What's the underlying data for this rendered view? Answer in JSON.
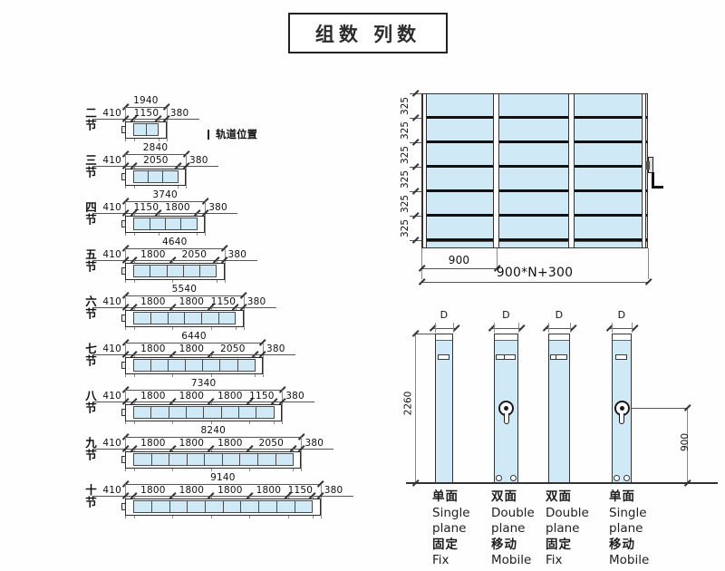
{
  "title": "组数 列数",
  "legend": {
    "track_label": "轨道位置"
  },
  "colors": {
    "panel_blue": "#cfe9f6",
    "line_dark": "#333333",
    "text": "#1c1c1c"
  },
  "rail_rows": [
    {
      "label": "二节",
      "total": 1940,
      "segments": [
        410,
        1150,
        380
      ],
      "cells": 2
    },
    {
      "label": "三节",
      "total": 2840,
      "segments": [
        410,
        2050,
        380
      ],
      "cells": 3
    },
    {
      "label": "四节",
      "total": 3740,
      "segments": [
        410,
        1150,
        1800,
        380
      ],
      "cells": 4
    },
    {
      "label": "五节",
      "total": 4640,
      "segments": [
        410,
        1800,
        2050,
        380
      ],
      "cells": 5
    },
    {
      "label": "六节",
      "total": 5540,
      "segments": [
        410,
        1800,
        1800,
        1150,
        380
      ],
      "cells": 6
    },
    {
      "label": "七节",
      "total": 6440,
      "segments": [
        410,
        1800,
        1800,
        2050,
        380
      ],
      "cells": 7
    },
    {
      "label": "八节",
      "total": 7340,
      "segments": [
        410,
        1800,
        1800,
        1800,
        1150,
        380
      ],
      "cells": 8
    },
    {
      "label": "九节",
      "total": 8240,
      "segments": [
        410,
        1800,
        1800,
        1800,
        2050,
        380
      ],
      "cells": 9
    },
    {
      "label": "十节",
      "total": 9140,
      "segments": [
        410,
        1800,
        1800,
        1800,
        1800,
        1150,
        380
      ],
      "cells": 10
    }
  ],
  "elevation": {
    "rows": 6,
    "cols": 3,
    "row_height_label": "325",
    "first_bay_label": "900",
    "total_width_label": "900*N+300"
  },
  "uprights": {
    "width_label": "D",
    "height_label": "2260",
    "crank_height_label": "900",
    "items": [
      {
        "type_cn": "单面",
        "type_en_1": "Single",
        "type_en_2": "plane",
        "motion_cn": "固定",
        "motion_en": "Fix",
        "slots": 1,
        "crank": false,
        "wheels": false
      },
      {
        "type_cn": "双面",
        "type_en_1": "Double",
        "type_en_2": "plane",
        "motion_cn": "移动",
        "motion_en": "Mobile",
        "slots": 2,
        "crank": true,
        "wheels": true
      },
      {
        "type_cn": "双面",
        "type_en_1": "Double",
        "type_en_2": "plane",
        "motion_cn": "固定",
        "motion_en": "Fix",
        "slots": 2,
        "crank": false,
        "wheels": false
      },
      {
        "type_cn": "单面",
        "type_en_1": "Single",
        "type_en_2": "plane",
        "motion_cn": "移动",
        "motion_en": "Mobile",
        "slots": 1,
        "crank": true,
        "wheels": true
      }
    ]
  }
}
